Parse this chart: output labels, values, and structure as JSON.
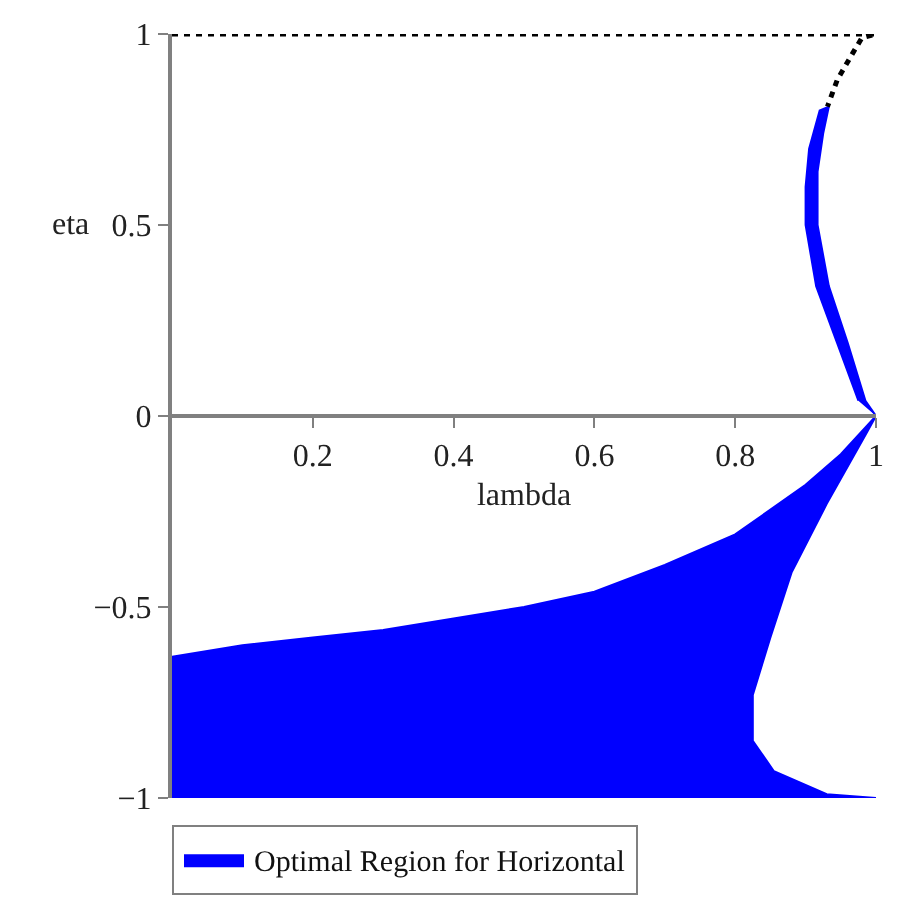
{
  "chart_data": {
    "type": "area",
    "xlabel": "lambda",
    "ylabel": "eta",
    "xlim": [
      0,
      1
    ],
    "ylim": [
      -1,
      1
    ],
    "xticks": [
      0.2,
      0.4,
      0.6,
      0.8,
      1
    ],
    "yticks": [
      {
        "value": -1,
        "label": "−1"
      },
      {
        "value": -0.5,
        "label": "−0.5"
      },
      0,
      0.5,
      1
    ],
    "legend": "bottom",
    "series": [
      {
        "name": "Optimal Region for Horizontal",
        "color": "#0000ff",
        "x": [
          0,
          0.1,
          0.2,
          0.3,
          0.4,
          0.5,
          0.6,
          0.7,
          0.8,
          0.9,
          0.95,
          1,
          0.985,
          0.93,
          0.88,
          0.85,
          0.825,
          0.825,
          0.855,
          0.93,
          1,
          0
        ],
        "values": [
          -0.63,
          -0.6,
          -0.58,
          -0.56,
          -0.53,
          -0.5,
          -0.46,
          -0.39,
          -0.31,
          -0.18,
          -0.1,
          0,
          -0.05,
          -0.23,
          -0.41,
          -0.58,
          -0.73,
          -0.85,
          -0.93,
          -0.99,
          -1,
          -1
        ]
      },
      {
        "color": "#0000ff",
        "x": [
          1,
          0.985,
          0.96,
          0.933,
          0.917,
          0.917,
          0.925,
          0.933,
          0.92,
          0.905,
          0.9,
          0.9,
          0.915,
          0.945,
          0.975
        ],
        "values": [
          0,
          0.04,
          0.19,
          0.34,
          0.5,
          0.64,
          0.74,
          0.81,
          0.8,
          0.7,
          0.6,
          0.5,
          0.34,
          0.19,
          0.04
        ]
      },
      {
        "type": "line",
        "line_style": "dotted",
        "color": "#000000",
        "x": [
          0,
          1,
          0.98,
          0.967,
          0.945,
          0.931
        ],
        "values": [
          1,
          1,
          0.99,
          0.95,
          0.88,
          0.81
        ]
      }
    ]
  }
}
